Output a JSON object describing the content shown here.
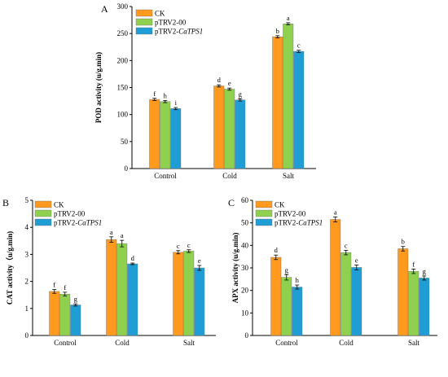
{
  "colors": {
    "CK": "#ff9a1f",
    "pTRV2-00": "#8fd14f",
    "pTRV2-CaTPS1": "#1f9ed6"
  },
  "legend": [
    {
      "key": "CK",
      "name": "CK",
      "italic_suffix": ""
    },
    {
      "key": "pTRV2-00",
      "name": "pTRV2-00",
      "italic_suffix": ""
    },
    {
      "key": "pTRV2-CaTPS1",
      "name": "pTRV2-",
      "italic_suffix": "CaTPS1"
    }
  ],
  "chart_data": [
    {
      "panel": "A",
      "type": "bar",
      "ylabel": "POD activity (u/g.min)",
      "xlabel": "",
      "categories": [
        "Control",
        "Cold",
        "Salt"
      ],
      "ylim": [
        0,
        300
      ],
      "yticks": [
        0,
        50,
        100,
        150,
        200,
        250,
        300
      ],
      "legend_position": "top-left",
      "series": [
        {
          "name": "CK",
          "values": [
            128,
            153,
            244
          ],
          "errors": [
            2,
            2,
            2
          ],
          "letters": [
            "f",
            "d",
            "b"
          ]
        },
        {
          "name": "pTRV2-00",
          "values": [
            124,
            147,
            268
          ],
          "errors": [
            2,
            2,
            2
          ],
          "letters": [
            "h",
            "e",
            "a"
          ]
        },
        {
          "name": "pTRV2-CaTPS1",
          "values": [
            111,
            127,
            217
          ],
          "errors": [
            2,
            2,
            2
          ],
          "letters": [
            "i",
            "g",
            "c"
          ]
        }
      ]
    },
    {
      "panel": "B",
      "type": "bar",
      "ylabel": "CAT activity（u/g.min)",
      "xlabel": "",
      "categories": [
        "Control",
        "Cold",
        "Salt"
      ],
      "ylim": [
        0,
        5
      ],
      "yticks": [
        0,
        1,
        2,
        3,
        4,
        5
      ],
      "legend_position": "top-left",
      "series": [
        {
          "name": "CK",
          "values": [
            1.63,
            3.55,
            3.08
          ],
          "errors": [
            0.07,
            0.1,
            0.06
          ],
          "letters": [
            "f",
            "a",
            "c"
          ]
        },
        {
          "name": "pTRV2-00",
          "values": [
            1.53,
            3.4,
            3.12
          ],
          "errors": [
            0.07,
            0.12,
            0.05
          ],
          "letters": [
            "f",
            "a",
            "c"
          ]
        },
        {
          "name": "pTRV2-CaTPS1",
          "values": [
            1.13,
            2.65,
            2.5
          ],
          "errors": [
            0.04,
            0.03,
            0.09
          ],
          "letters": [
            "g",
            "d",
            "e"
          ]
        }
      ]
    },
    {
      "panel": "C",
      "type": "bar",
      "ylabel": "APX activity (u/g.min)",
      "xlabel": "",
      "categories": [
        "Control",
        "Cold",
        "Salt"
      ],
      "ylim": [
        0,
        60
      ],
      "yticks": [
        0,
        10,
        20,
        30,
        40,
        50,
        60
      ],
      "legend_position": "top-left",
      "series": [
        {
          "name": "CK",
          "values": [
            34.7,
            51.5,
            38.5
          ],
          "errors": [
            1.0,
            1.1,
            1.0
          ],
          "letters": [
            "d",
            "a",
            "b"
          ]
        },
        {
          "name": "pTRV2-00",
          "values": [
            25.8,
            36.8,
            28.5
          ],
          "errors": [
            1.2,
            1.0,
            1.0
          ],
          "letters": [
            "g",
            "c",
            "f"
          ]
        },
        {
          "name": "pTRV2-CaTPS1",
          "values": [
            21.5,
            30.2,
            25.5
          ],
          "errors": [
            0.9,
            1.1,
            0.9
          ],
          "letters": [
            "h",
            "e",
            "g"
          ]
        }
      ]
    }
  ]
}
